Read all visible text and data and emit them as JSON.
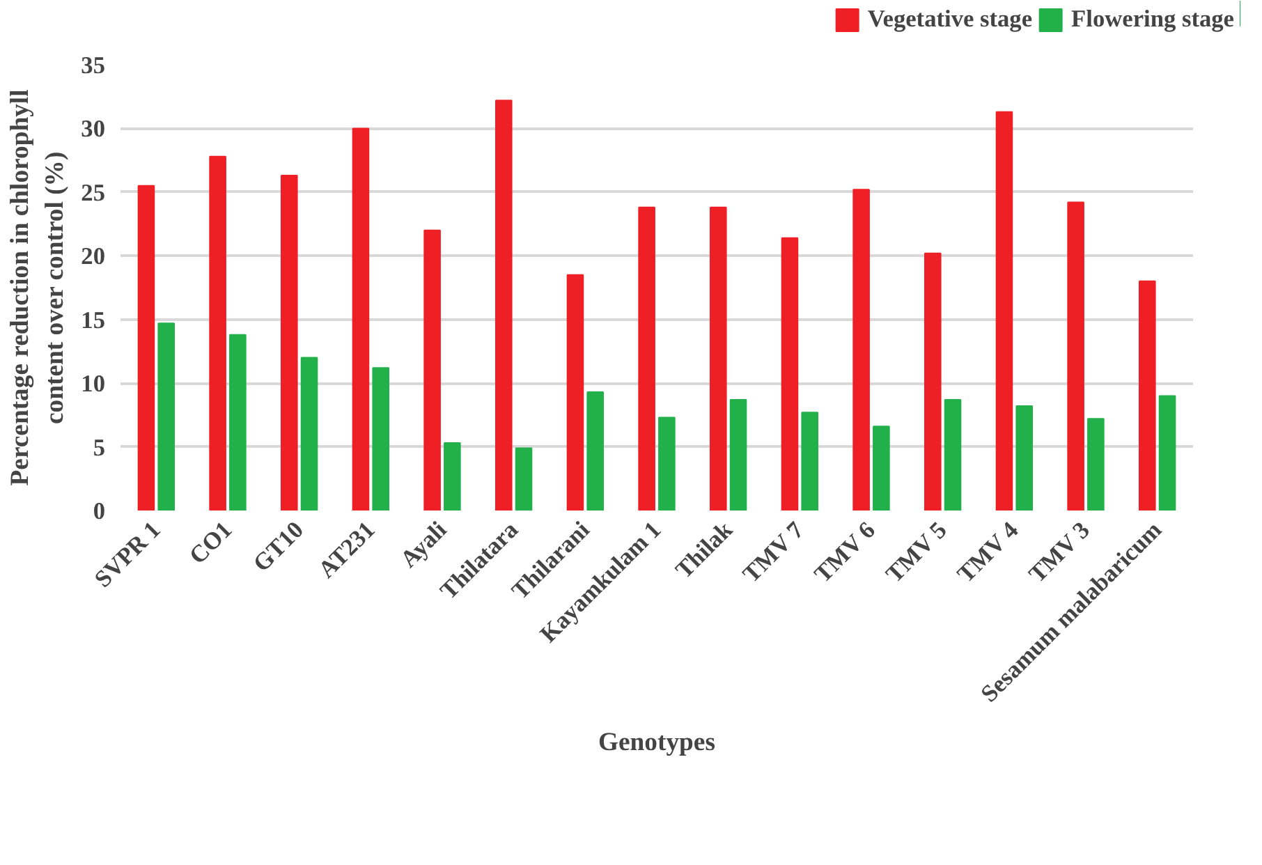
{
  "chart_data": {
    "type": "bar",
    "xlabel": "Genotypes",
    "ylabel": "Percentage reduction in chlorophyll content over control (%)",
    "categories": [
      "SVPR 1",
      "CO1",
      "GT10",
      "AT231",
      "Ayali",
      "Thilatara",
      "Thilarani",
      "Kayamkulam 1",
      "Thilak",
      "TMV 7",
      "TMV 6",
      "TMV 5",
      "TMV 4",
      "TMV 3",
      "Sesamum malabaricum"
    ],
    "series": [
      {
        "name": "Vegetative stage",
        "color": "#ee1f25",
        "values": [
          25.5,
          27.8,
          26.3,
          30.0,
          22.0,
          32.2,
          18.5,
          23.8,
          23.8,
          21.4,
          25.2,
          20.2,
          31.3,
          24.2,
          18.0
        ]
      },
      {
        "name": "Flowering stage",
        "color": "#22b04b",
        "values": [
          14.7,
          13.8,
          12.0,
          11.2,
          5.3,
          4.9,
          9.3,
          7.3,
          8.7,
          7.7,
          6.6,
          8.7,
          8.2,
          7.2,
          9.0
        ]
      }
    ],
    "ylim": [
      0,
      35
    ],
    "yticks": [
      0,
      5,
      10,
      15,
      20,
      25,
      30,
      35
    ],
    "grid": "y",
    "legend": "top right"
  }
}
